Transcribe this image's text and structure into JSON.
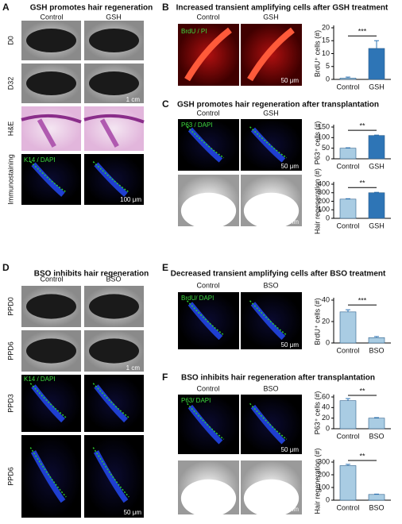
{
  "panels": [
    {
      "letter": "A",
      "title": "GSH promotes hair regeneration",
      "columns": [
        "Control",
        "GSH"
      ],
      "rows": [
        "D0",
        "D32",
        "H&E",
        "Immunostaining"
      ],
      "labels": [
        "1 cm",
        "K14 / DAPI",
        "100 μm"
      ]
    },
    {
      "letter": "B",
      "title": "Increased transient amplifying cells after GSH treatment",
      "columns": [
        "Control",
        "GSH"
      ],
      "labels": [
        "BrdU / PI",
        "50 μm"
      ]
    },
    {
      "letter": "C",
      "title": "GSH promotes hair regeneration after transplantation",
      "columns": [
        "Control",
        "GSH"
      ],
      "labels": [
        "P63 / DAPI",
        "50 μm",
        "5 mm"
      ]
    },
    {
      "letter": "D",
      "title": "BSO inhibits hair regeneration",
      "columns": [
        "Control",
        "BSO"
      ],
      "rows": [
        "PPD0",
        "PPD6",
        "PPD3",
        "PPD6"
      ],
      "labels": [
        "1 cm",
        "K14 / DAPI",
        "50 μm"
      ]
    },
    {
      "letter": "E",
      "title": "Decreased transient amplifying cells after BSO treatment",
      "columns": [
        "Control",
        "BSO"
      ],
      "labels": [
        "BrdU/ DAPI",
        "50 μm"
      ]
    },
    {
      "letter": "F",
      "title": "BSO inhibits hair regeneration after transplantation",
      "columns": [
        "Control",
        "BSO"
      ],
      "labels": [
        "P63/ DAPI",
        "50 μm",
        "5 mm"
      ]
    }
  ],
  "chart_data": [
    {
      "type": "bar",
      "ylabel": "BrdU⁺ cells (#)",
      "categories": [
        "Control",
        "GSH"
      ],
      "values": [
        0.5,
        12
      ],
      "errors": [
        0.4,
        3
      ],
      "colors": [
        "#a9cce3",
        "#2e75b6"
      ],
      "ylim": [
        0,
        20
      ],
      "yticks": [
        0,
        5,
        10,
        15,
        20
      ],
      "significance": "***"
    },
    {
      "type": "bar",
      "ylabel": "P63⁺ cells (#)",
      "categories": [
        "Control",
        "GSH"
      ],
      "values": [
        50,
        110
      ],
      "errors": [
        2,
        2
      ],
      "colors": [
        "#a9cce3",
        "#2e75b6"
      ],
      "ylim": [
        0,
        150
      ],
      "yticks": [
        0,
        50,
        100,
        150
      ],
      "significance": "**"
    },
    {
      "type": "bar",
      "ylabel": "Hair regeneration (#)",
      "categories": [
        "Control",
        "GSH"
      ],
      "values": [
        225,
        300
      ],
      "errors": [
        5,
        5
      ],
      "colors": [
        "#a9cce3",
        "#2e75b6"
      ],
      "ylim": [
        0,
        400
      ],
      "yticks": [
        0,
        100,
        200,
        300,
        400
      ],
      "significance": "**"
    },
    {
      "type": "bar",
      "ylabel": "BrdU⁺ cells (#)",
      "categories": [
        "Control",
        "BSO"
      ],
      "values": [
        29,
        5
      ],
      "errors": [
        2,
        1
      ],
      "colors": [
        "#a9cce3",
        "#a9cce3"
      ],
      "ylim": [
        0,
        40
      ],
      "yticks": [
        0,
        20,
        40
      ],
      "significance": "***"
    },
    {
      "type": "bar",
      "ylabel": "P63⁺ cells (#)",
      "categories": [
        "Control",
        "BSO"
      ],
      "values": [
        53,
        20
      ],
      "errors": [
        4,
        1
      ],
      "colors": [
        "#a9cce3",
        "#a9cce3"
      ],
      "ylim": [
        0,
        60
      ],
      "yticks": [
        0,
        20,
        40,
        60
      ],
      "significance": "**"
    },
    {
      "type": "bar",
      "ylabel": "Hair regeneration (#)",
      "categories": [
        "Control",
        "BSO"
      ],
      "values": [
        272,
        45
      ],
      "errors": [
        10,
        3
      ],
      "colors": [
        "#a9cce3",
        "#a9cce3"
      ],
      "ylim": [
        0,
        300
      ],
      "yticks": [
        0,
        100,
        200,
        300
      ],
      "significance": "**"
    }
  ]
}
